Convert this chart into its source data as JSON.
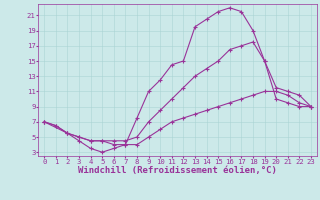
{
  "bg_color": "#cce9e9",
  "line_color": "#993399",
  "xlim": [
    -0.5,
    23.5
  ],
  "ylim": [
    2.5,
    22.5
  ],
  "yticks": [
    3,
    5,
    7,
    9,
    11,
    13,
    15,
    17,
    19,
    21
  ],
  "xticks": [
    0,
    1,
    2,
    3,
    4,
    5,
    6,
    7,
    8,
    9,
    10,
    11,
    12,
    13,
    14,
    15,
    16,
    17,
    18,
    19,
    20,
    21,
    22,
    23
  ],
  "line1_x": [
    0,
    1,
    2,
    3,
    4,
    5,
    6,
    7,
    8,
    9,
    10,
    11,
    12,
    13,
    14,
    15,
    16,
    17,
    18,
    19,
    20,
    21,
    22,
    23
  ],
  "line1_y": [
    7,
    6.5,
    5.5,
    4.5,
    3.5,
    3,
    3.5,
    4,
    7.5,
    11,
    12.5,
    14.5,
    15,
    19.5,
    20.5,
    21.5,
    22,
    21.5,
    19,
    15,
    10,
    9.5,
    9,
    9
  ],
  "line2_x": [
    0,
    1,
    2,
    3,
    4,
    5,
    6,
    7,
    8,
    9,
    10,
    11,
    12,
    13,
    14,
    15,
    16,
    17,
    18,
    19,
    20,
    21,
    22,
    23
  ],
  "line2_y": [
    7,
    6.5,
    5.5,
    5,
    4.5,
    4.5,
    4.5,
    4.5,
    5,
    7,
    8.5,
    10,
    11.5,
    13,
    14,
    15,
    16.5,
    17,
    17.5,
    15,
    11.5,
    11,
    10.5,
    9
  ],
  "line3_x": [
    0,
    2,
    3,
    4,
    5,
    6,
    7,
    8,
    9,
    10,
    11,
    12,
    13,
    14,
    15,
    16,
    17,
    18,
    19,
    20,
    21,
    22,
    23
  ],
  "line3_y": [
    7,
    5.5,
    5,
    4.5,
    4.5,
    4,
    4,
    4,
    5,
    6,
    7,
    7.5,
    8,
    8.5,
    9,
    9.5,
    10,
    10.5,
    11,
    11,
    10.5,
    9.5,
    9
  ],
  "xlabel": "Windchill (Refroidissement éolien,°C)",
  "tick_fontsize": 5.2,
  "xlabel_fontsize": 6.5,
  "grid_color": "#aad4d4",
  "linewidth": 0.8,
  "markersize": 3.0
}
